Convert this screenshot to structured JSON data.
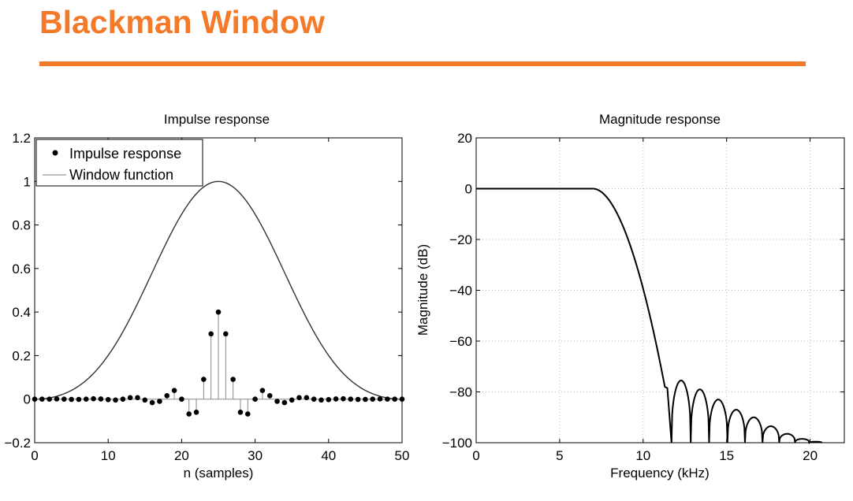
{
  "slide": {
    "title": "Blackman Window",
    "accent_color": "#f47a2a"
  },
  "chart_data": [
    {
      "type": "line",
      "title": "Impulse response",
      "xlabel": "n (samples)",
      "ylabel": "",
      "xlim": [
        0,
        50
      ],
      "ylim": [
        -0.2,
        1.2
      ],
      "xticks": [
        "0",
        "10",
        "20",
        "30",
        "40",
        "50"
      ],
      "yticks": [
        "-0.2",
        "0",
        "0.2",
        "0.4",
        "0.6",
        "0.8",
        "1",
        "1.2"
      ],
      "grid": false,
      "legend_position": "top-left",
      "series": [
        {
          "name": "Impulse response",
          "type": "stem",
          "x": [
            0,
            1,
            2,
            3,
            4,
            5,
            6,
            7,
            8,
            9,
            10,
            11,
            12,
            13,
            14,
            15,
            16,
            17,
            18,
            19,
            20,
            21,
            22,
            23,
            24,
            25,
            26,
            27,
            28,
            29,
            30,
            31,
            32,
            33,
            34,
            35,
            36,
            37,
            38,
            39,
            40,
            41,
            42,
            43,
            44,
            45,
            46,
            47,
            48,
            49,
            50
          ],
          "y": [
            0,
            0,
            0,
            0.001,
            0,
            -0.001,
            -0.001,
            0,
            0.002,
            0.001,
            -0.002,
            -0.004,
            0,
            0.007,
            0.007,
            -0.004,
            -0.016,
            -0.01,
            0.016,
            0.04,
            0,
            -0.068,
            -0.06,
            0.091,
            0.3,
            0.4,
            0.3,
            0.091,
            -0.06,
            -0.068,
            0,
            0.04,
            0.016,
            -0.01,
            -0.016,
            -0.004,
            0.007,
            0.007,
            0,
            -0.004,
            -0.002,
            0.001,
            0.002,
            0,
            -0.001,
            -0.001,
            0,
            0.001,
            0,
            0,
            0
          ]
        },
        {
          "name": "Window function",
          "type": "line",
          "function": "blackman",
          "length": 51
        }
      ]
    },
    {
      "type": "line",
      "title": "Magnitude response",
      "xlabel": "Frequency (kHz)",
      "ylabel": "Magnitude (dB)",
      "xlim": [
        0,
        22.05
      ],
      "ylim": [
        -100,
        20
      ],
      "xticks": [
        "0",
        "5",
        "10",
        "15",
        "20"
      ],
      "yticks": [
        "-100",
        "-80",
        "-60",
        "-40",
        "-20",
        "0",
        "20"
      ],
      "grid": true,
      "series": [
        {
          "name": "",
          "transition": {
            "passband_edge_khz": 7.0,
            "stopband_start_khz": 11.3,
            "stopband_floor_db": -78
          },
          "sidelobes": [
            {
              "start_khz": 11.7,
              "end_khz": 12.85,
              "peak_db": -75.5
            },
            {
              "start_khz": 12.85,
              "end_khz": 13.95,
              "peak_db": -79
            },
            {
              "start_khz": 13.95,
              "end_khz": 15.05,
              "peak_db": -83
            },
            {
              "start_khz": 15.05,
              "end_khz": 16.1,
              "peak_db": -87
            },
            {
              "start_khz": 16.1,
              "end_khz": 17.15,
              "peak_db": -90
            },
            {
              "start_khz": 17.15,
              "end_khz": 18.15,
              "peak_db": -93.5
            },
            {
              "start_khz": 18.15,
              "end_khz": 19.1,
              "peak_db": -96.5
            },
            {
              "start_khz": 19.1,
              "end_khz": 19.95,
              "peak_db": -98.5
            },
            {
              "start_khz": 19.95,
              "end_khz": 20.7,
              "peak_db": -99.6
            }
          ]
        }
      ]
    }
  ]
}
